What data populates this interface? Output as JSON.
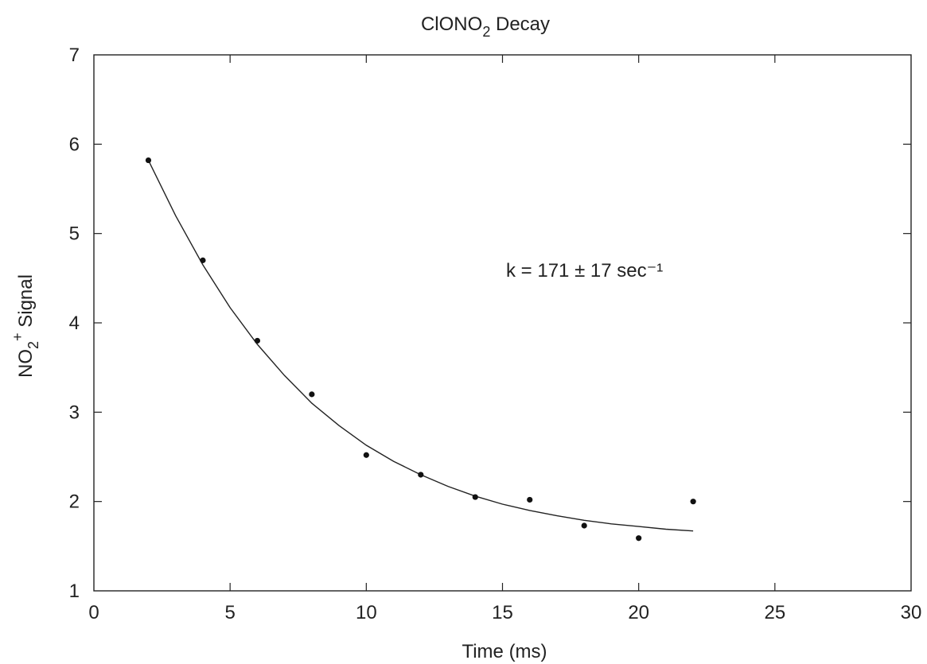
{
  "chart_data": {
    "type": "scatter",
    "title": "ClONO",
    "title_sub": "2",
    "title_rest": " Decay",
    "xlabel": "Time (ms)",
    "ylabel_main": "NO",
    "ylabel_sub": "2",
    "ylabel_sup": "+",
    "ylabel_rest": " Signal",
    "xlim": [
      0,
      30
    ],
    "ylim": [
      1,
      7
    ],
    "x_ticks": [
      0,
      5,
      10,
      15,
      20,
      25,
      30
    ],
    "y_ticks": [
      1,
      2,
      3,
      4,
      5,
      6,
      7
    ],
    "grid": false,
    "annotation": "k = 171 ± 17 sec⁻¹",
    "series": [
      {
        "kind": "points",
        "x": [
          2,
          4,
          6,
          8,
          10,
          12,
          14,
          16,
          18,
          20,
          22
        ],
        "y": [
          5.82,
          4.7,
          3.8,
          3.2,
          2.52,
          2.3,
          2.05,
          2.02,
          1.73,
          1.59,
          2.0
        ]
      },
      {
        "kind": "fit-curve",
        "x": [
          2,
          3,
          4,
          5,
          6,
          7,
          8,
          9,
          10,
          11,
          12,
          13,
          14,
          15,
          16,
          17,
          18,
          19,
          20,
          21,
          22
        ],
        "y": [
          5.82,
          5.2,
          4.65,
          4.17,
          3.76,
          3.41,
          3.1,
          2.85,
          2.63,
          2.45,
          2.3,
          2.17,
          2.06,
          1.97,
          1.9,
          1.84,
          1.79,
          1.75,
          1.72,
          1.69,
          1.67
        ]
      }
    ]
  }
}
